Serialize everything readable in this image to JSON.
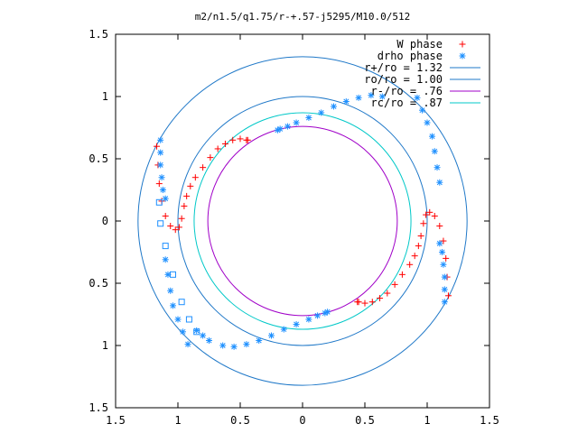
{
  "chart_data": {
    "type": "scatter",
    "title": "m2/n1.5/q1.75/r-+.57-j5295/M10.0/512",
    "xlim": [
      -1.5,
      1.5
    ],
    "ylim": [
      -1.5,
      1.5
    ],
    "x_ticks": [
      -1.5,
      -1,
      -0.5,
      0,
      0.5,
      1,
      1.5
    ],
    "y_ticks": [
      1.5,
      1,
      0.5,
      0,
      -0.5,
      -1,
      -1.5
    ],
    "x_tick_labels": [
      "1.5",
      "1",
      "0.5",
      "0",
      "0.5",
      "1",
      "1.5"
    ],
    "y_tick_labels": [
      "1.5",
      "1",
      "0.5",
      "0",
      "0.5",
      "1",
      "1.5"
    ],
    "grid": false,
    "legend_position": "top-right",
    "series": [
      {
        "name": "W phase",
        "marker": "plus",
        "color": "#ff0000",
        "x": [
          -1.17,
          -1.16,
          -1.15,
          -1.13,
          -1.1,
          -1.06,
          -1.02,
          -0.99,
          -0.97,
          -0.95,
          -0.93,
          -0.9,
          -0.86,
          -0.8,
          -0.74,
          -0.68,
          -0.62,
          -0.56,
          -0.5,
          -0.45,
          -0.44,
          1.17,
          1.16,
          1.15,
          1.13,
          1.1,
          1.06,
          1.02,
          0.99,
          0.97,
          0.95,
          0.93,
          0.9,
          0.86,
          0.8,
          0.74,
          0.68,
          0.62,
          0.56,
          0.5,
          0.45,
          0.44
        ],
        "y": [
          0.6,
          0.45,
          0.3,
          0.16,
          0.04,
          -0.04,
          -0.07,
          -0.05,
          0.02,
          0.12,
          0.2,
          0.28,
          0.35,
          0.43,
          0.51,
          0.58,
          0.62,
          0.65,
          0.66,
          0.65,
          0.65,
          -0.6,
          -0.45,
          -0.3,
          -0.16,
          -0.04,
          0.04,
          0.07,
          0.05,
          -0.02,
          -0.12,
          -0.2,
          -0.28,
          -0.35,
          -0.43,
          -0.51,
          -0.58,
          -0.62,
          -0.65,
          -0.66,
          -0.65,
          -0.65
        ]
      },
      {
        "name": "drho phase",
        "marker": "star",
        "color": "#1e90ff",
        "x": [
          -1.14,
          -1.14,
          -1.14,
          -1.13,
          -1.12,
          -1.1,
          1.14,
          1.14,
          1.14,
          1.13,
          1.12,
          1.1,
          0.64,
          0.55,
          0.45,
          0.35,
          0.25,
          0.15,
          0.05,
          -0.05,
          -0.12,
          -0.18,
          -0.2,
          -0.64,
          -0.55,
          -0.45,
          -0.35,
          -0.25,
          -0.15,
          -0.05,
          0.05,
          0.12,
          0.18,
          0.2,
          0.92,
          0.96,
          1.0,
          1.04,
          1.06,
          1.08,
          1.1,
          -0.92,
          -0.96,
          -1.0,
          -1.04,
          -1.06,
          -1.08,
          -1.1,
          -0.85,
          -0.8,
          -0.75
        ],
        "y": [
          0.65,
          0.55,
          0.45,
          0.35,
          0.25,
          0.18,
          -0.65,
          -0.55,
          -0.45,
          -0.35,
          -0.25,
          -0.18,
          1.0,
          1.01,
          0.99,
          0.96,
          0.92,
          0.87,
          0.83,
          0.79,
          0.76,
          0.74,
          0.73,
          -1.0,
          -1.01,
          -0.99,
          -0.96,
          -0.92,
          -0.87,
          -0.83,
          -0.79,
          -0.76,
          -0.74,
          -0.73,
          0.99,
          0.89,
          0.79,
          0.68,
          0.56,
          0.43,
          0.31,
          -0.99,
          -0.89,
          -0.79,
          -0.68,
          -0.56,
          -0.43,
          -0.31,
          -0.88,
          -0.92,
          -0.96
        ]
      },
      {
        "name": "",
        "marker": "square",
        "color": "#1e90ff",
        "x": [
          -1.15,
          -1.14,
          -1.1,
          -1.04,
          -0.97,
          -0.91,
          -0.85
        ],
        "y": [
          0.15,
          -0.02,
          -0.2,
          -0.43,
          -0.65,
          -0.79,
          -0.89
        ]
      },
      {
        "name": "r+/ro = 1.32",
        "type": "circle",
        "radius": 1.32,
        "color": "#1f78c8"
      },
      {
        "name": "ro/ro = 1.00",
        "type": "circle",
        "radius": 1.0,
        "color": "#1f78c8"
      },
      {
        "name": "r-/ro =  .76",
        "type": "circle",
        "radius": 0.76,
        "color": "#a000c8"
      },
      {
        "name": "rc/ro =  .87",
        "type": "circle",
        "radius": 0.87,
        "color": "#00c8c8"
      }
    ]
  }
}
